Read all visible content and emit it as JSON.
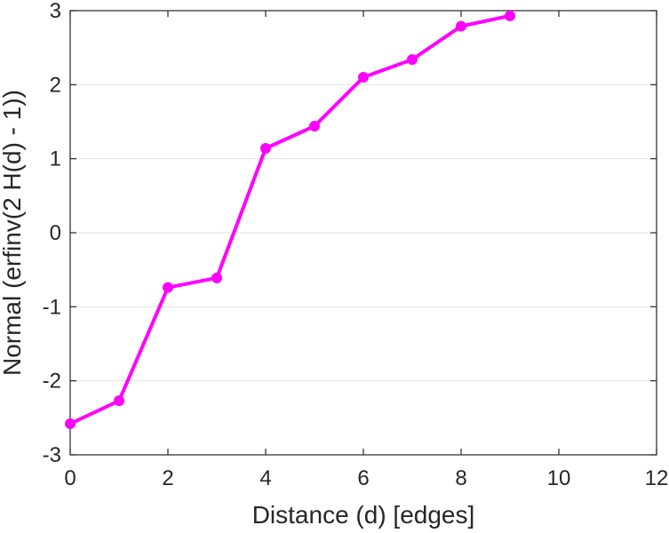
{
  "chart_data": {
    "type": "line",
    "title": "",
    "xlabel": "Distance (d) [edges]",
    "ylabel": "Normal (erfinv(2 H(d) - 1))",
    "xlim": [
      0,
      12
    ],
    "ylim": [
      -3,
      3
    ],
    "xticks": [
      "0",
      "2",
      "4",
      "6",
      "8",
      "10",
      "12"
    ],
    "yticks": [
      "-3",
      "-2",
      "-1",
      "0",
      "1",
      "2",
      "3"
    ],
    "grid": "horizontal",
    "legend": "none",
    "series": [
      {
        "color": "#ff00ff",
        "x": [
          0,
          1,
          2,
          3,
          4,
          5,
          6,
          7,
          8,
          9
        ],
        "y": [
          -2.58,
          -2.27,
          -0.74,
          -0.61,
          1.14,
          1.44,
          2.1,
          2.34,
          2.79,
          2.93
        ]
      }
    ]
  }
}
